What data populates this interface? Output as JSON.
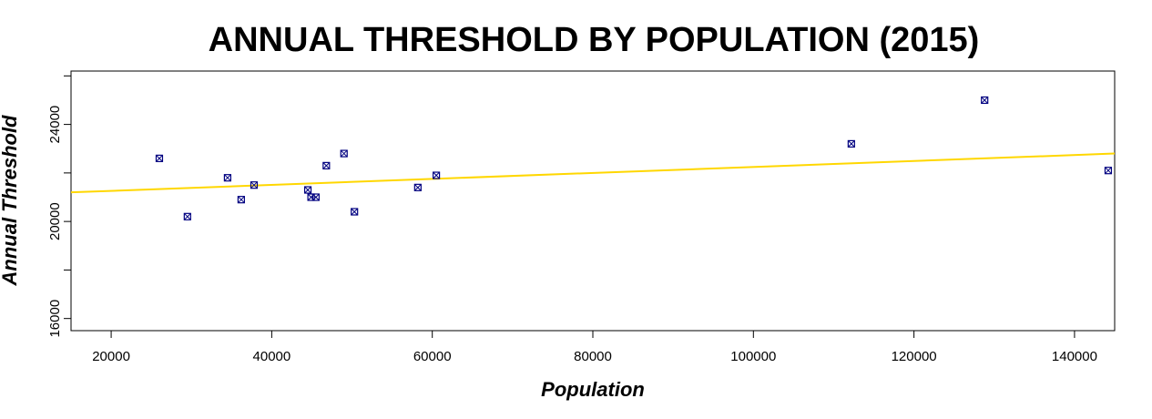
{
  "chart_data": {
    "type": "scatter",
    "title": "ANNUAL THRESHOLD BY POPULATION (2015)",
    "xlabel": "Population",
    "ylabel": "Annual Threshold",
    "xlim": [
      15000,
      145000
    ],
    "ylim": [
      15500,
      26200
    ],
    "x_ticks": [
      20000,
      40000,
      60000,
      80000,
      100000,
      120000,
      140000
    ],
    "x_tick_labels": [
      "20000",
      "40000",
      "60000",
      "80000",
      "100000",
      "120000",
      "140000"
    ],
    "y_ticks": [
      16000,
      20000,
      24000
    ],
    "y_tick_labels": [
      "16000",
      "20000",
      "24000"
    ],
    "grid": false,
    "points": [
      {
        "x": 26000,
        "y": 22600
      },
      {
        "x": 29500,
        "y": 20200
      },
      {
        "x": 34500,
        "y": 21800
      },
      {
        "x": 36200,
        "y": 20900
      },
      {
        "x": 37800,
        "y": 21500
      },
      {
        "x": 44500,
        "y": 21300
      },
      {
        "x": 44900,
        "y": 21000
      },
      {
        "x": 45500,
        "y": 21000
      },
      {
        "x": 46800,
        "y": 22300
      },
      {
        "x": 49000,
        "y": 22800
      },
      {
        "x": 50300,
        "y": 20400
      },
      {
        "x": 58200,
        "y": 21400
      },
      {
        "x": 60500,
        "y": 21900
      },
      {
        "x": 112200,
        "y": 23200
      },
      {
        "x": 128800,
        "y": 25000
      },
      {
        "x": 144200,
        "y": 22100
      }
    ],
    "trendline": {
      "type": "linear",
      "color": "#FFD700",
      "start": {
        "x": 15000,
        "y": 21200
      },
      "end": {
        "x": 145000,
        "y": 22800
      }
    },
    "point_color": "#000080",
    "axis_color": "#000000"
  }
}
